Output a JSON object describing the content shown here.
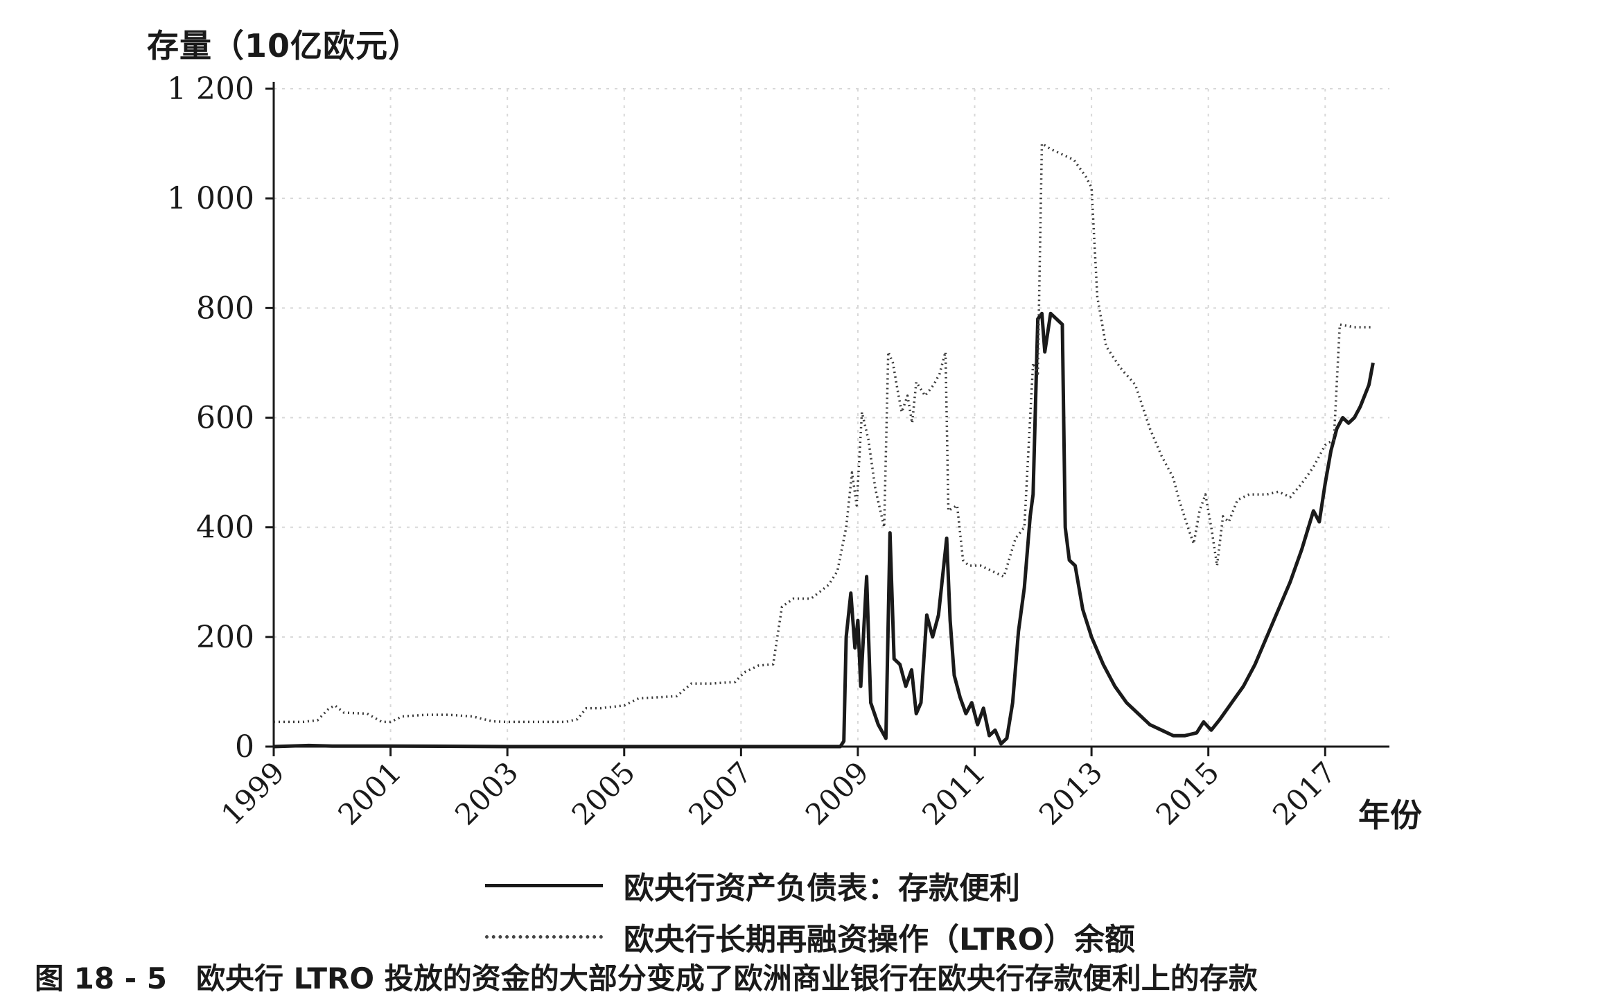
{
  "ylabel": "存量（10亿欧元）",
  "xunit": "年份",
  "caption": "图 18 - 5　欧央行 LTRO 投放的资金的大部分变成了欧洲商业银行在欧央行存款便利上的存款",
  "legend": [
    {
      "label": "欧央行资产负债表：存款便利",
      "style": "solid"
    },
    {
      "label": "欧央行长期再融资操作（LTRO）余额",
      "style": "dotted"
    }
  ],
  "chart_data": {
    "type": "line",
    "title": "",
    "xlabel": "年份",
    "ylabel": "存量（10亿欧元）",
    "xlim": [
      1999,
      2018.1
    ],
    "ylim": [
      0,
      1200
    ],
    "x_ticks": [
      "1999",
      "2001",
      "2003",
      "2005",
      "2007",
      "2009",
      "2011",
      "2013",
      "2015",
      "2017"
    ],
    "y_ticks": [
      "0",
      "200",
      "400",
      "600",
      "800",
      "1 000",
      "1 200"
    ],
    "grid": true,
    "legend_position": "bottom",
    "series": [
      {
        "name": "欧央行资产负债表：存款便利",
        "style": "solid",
        "color": "#1a1a1a",
        "points": [
          [
            1999.0,
            0
          ],
          [
            1999.6,
            2
          ],
          [
            2000.0,
            1
          ],
          [
            2001.0,
            1
          ],
          [
            2003.0,
            0
          ],
          [
            2005.0,
            0
          ],
          [
            2007.0,
            0
          ],
          [
            2008.7,
            0
          ],
          [
            2008.76,
            10
          ],
          [
            2008.8,
            200
          ],
          [
            2008.88,
            280
          ],
          [
            2008.95,
            180
          ],
          [
            2009.0,
            230
          ],
          [
            2009.05,
            110
          ],
          [
            2009.15,
            310
          ],
          [
            2009.22,
            80
          ],
          [
            2009.35,
            40
          ],
          [
            2009.48,
            15
          ],
          [
            2009.55,
            390
          ],
          [
            2009.62,
            160
          ],
          [
            2009.72,
            150
          ],
          [
            2009.82,
            110
          ],
          [
            2009.92,
            140
          ],
          [
            2010.0,
            60
          ],
          [
            2010.08,
            80
          ],
          [
            2010.18,
            240
          ],
          [
            2010.28,
            200
          ],
          [
            2010.38,
            240
          ],
          [
            2010.45,
            310
          ],
          [
            2010.52,
            380
          ],
          [
            2010.58,
            230
          ],
          [
            2010.65,
            130
          ],
          [
            2010.75,
            90
          ],
          [
            2010.85,
            60
          ],
          [
            2010.95,
            80
          ],
          [
            2011.05,
            40
          ],
          [
            2011.15,
            70
          ],
          [
            2011.25,
            20
          ],
          [
            2011.35,
            30
          ],
          [
            2011.45,
            5
          ],
          [
            2011.55,
            15
          ],
          [
            2011.65,
            80
          ],
          [
            2011.75,
            210
          ],
          [
            2011.85,
            290
          ],
          [
            2011.95,
            420
          ],
          [
            2012.0,
            460
          ],
          [
            2012.08,
            780
          ],
          [
            2012.15,
            790
          ],
          [
            2012.2,
            720
          ],
          [
            2012.3,
            790
          ],
          [
            2012.4,
            780
          ],
          [
            2012.5,
            770
          ],
          [
            2012.55,
            400
          ],
          [
            2012.62,
            340
          ],
          [
            2012.72,
            330
          ],
          [
            2012.85,
            250
          ],
          [
            2013.0,
            200
          ],
          [
            2013.2,
            150
          ],
          [
            2013.4,
            110
          ],
          [
            2013.6,
            80
          ],
          [
            2013.8,
            60
          ],
          [
            2014.0,
            40
          ],
          [
            2014.2,
            30
          ],
          [
            2014.4,
            20
          ],
          [
            2014.6,
            20
          ],
          [
            2014.8,
            25
          ],
          [
            2014.92,
            45
          ],
          [
            2015.05,
            30
          ],
          [
            2015.2,
            50
          ],
          [
            2015.4,
            80
          ],
          [
            2015.6,
            110
          ],
          [
            2015.8,
            150
          ],
          [
            2016.0,
            200
          ],
          [
            2016.2,
            250
          ],
          [
            2016.4,
            300
          ],
          [
            2016.6,
            360
          ],
          [
            2016.8,
            430
          ],
          [
            2016.9,
            410
          ],
          [
            2017.0,
            480
          ],
          [
            2017.1,
            540
          ],
          [
            2017.2,
            580
          ],
          [
            2017.3,
            600
          ],
          [
            2017.4,
            590
          ],
          [
            2017.5,
            600
          ],
          [
            2017.6,
            620
          ],
          [
            2017.75,
            660
          ],
          [
            2017.82,
            700
          ]
        ]
      },
      {
        "name": "欧央行长期再融资操作（LTRO）余额",
        "style": "dotted",
        "color": "#3a3a3a",
        "points": [
          [
            1999.0,
            45
          ],
          [
            1999.5,
            45
          ],
          [
            1999.75,
            48
          ],
          [
            1999.95,
            70
          ],
          [
            2000.05,
            75
          ],
          [
            2000.2,
            62
          ],
          [
            2000.6,
            60
          ],
          [
            2000.85,
            45
          ],
          [
            2001.0,
            45
          ],
          [
            2001.2,
            55
          ],
          [
            2001.6,
            58
          ],
          [
            2002.0,
            58
          ],
          [
            2002.4,
            55
          ],
          [
            2002.75,
            46
          ],
          [
            2003.0,
            45
          ],
          [
            2003.5,
            45
          ],
          [
            2004.0,
            45
          ],
          [
            2004.2,
            50
          ],
          [
            2004.35,
            70
          ],
          [
            2004.6,
            70
          ],
          [
            2005.0,
            75
          ],
          [
            2005.25,
            88
          ],
          [
            2005.6,
            90
          ],
          [
            2005.9,
            92
          ],
          [
            2006.15,
            115
          ],
          [
            2006.5,
            115
          ],
          [
            2006.9,
            118
          ],
          [
            2007.05,
            135
          ],
          [
            2007.3,
            148
          ],
          [
            2007.55,
            150
          ],
          [
            2007.7,
            255
          ],
          [
            2007.9,
            270
          ],
          [
            2008.2,
            270
          ],
          [
            2008.5,
            295
          ],
          [
            2008.65,
            320
          ],
          [
            2008.8,
            400
          ],
          [
            2008.9,
            500
          ],
          [
            2008.98,
            440
          ],
          [
            2009.07,
            610
          ],
          [
            2009.18,
            560
          ],
          [
            2009.3,
            470
          ],
          [
            2009.45,
            400
          ],
          [
            2009.52,
            720
          ],
          [
            2009.6,
            700
          ],
          [
            2009.68,
            650
          ],
          [
            2009.75,
            610
          ],
          [
            2009.85,
            640
          ],
          [
            2009.93,
            590
          ],
          [
            2010.0,
            665
          ],
          [
            2010.15,
            640
          ],
          [
            2010.3,
            660
          ],
          [
            2010.4,
            680
          ],
          [
            2010.5,
            720
          ],
          [
            2010.55,
            430
          ],
          [
            2010.7,
            440
          ],
          [
            2010.8,
            340
          ],
          [
            2010.9,
            330
          ],
          [
            2011.1,
            330
          ],
          [
            2011.3,
            320
          ],
          [
            2011.5,
            310
          ],
          [
            2011.7,
            380
          ],
          [
            2011.85,
            400
          ],
          [
            2012.0,
            700
          ],
          [
            2012.08,
            680
          ],
          [
            2012.15,
            1100
          ],
          [
            2012.3,
            1090
          ],
          [
            2012.5,
            1080
          ],
          [
            2012.7,
            1070
          ],
          [
            2012.9,
            1040
          ],
          [
            2013.0,
            1020
          ],
          [
            2013.1,
            820
          ],
          [
            2013.25,
            730
          ],
          [
            2013.5,
            690
          ],
          [
            2013.75,
            660
          ],
          [
            2014.0,
            580
          ],
          [
            2014.2,
            530
          ],
          [
            2014.4,
            490
          ],
          [
            2014.5,
            450
          ],
          [
            2014.65,
            400
          ],
          [
            2014.75,
            370
          ],
          [
            2014.85,
            430
          ],
          [
            2014.95,
            460
          ],
          [
            2015.05,
            400
          ],
          [
            2015.15,
            330
          ],
          [
            2015.25,
            420
          ],
          [
            2015.35,
            410
          ],
          [
            2015.5,
            450
          ],
          [
            2015.7,
            460
          ],
          [
            2016.0,
            460
          ],
          [
            2016.2,
            465
          ],
          [
            2016.4,
            455
          ],
          [
            2016.6,
            480
          ],
          [
            2016.8,
            510
          ],
          [
            2017.0,
            550
          ],
          [
            2017.15,
            560
          ],
          [
            2017.25,
            770
          ],
          [
            2017.5,
            765
          ],
          [
            2017.82,
            765
          ]
        ]
      }
    ]
  }
}
